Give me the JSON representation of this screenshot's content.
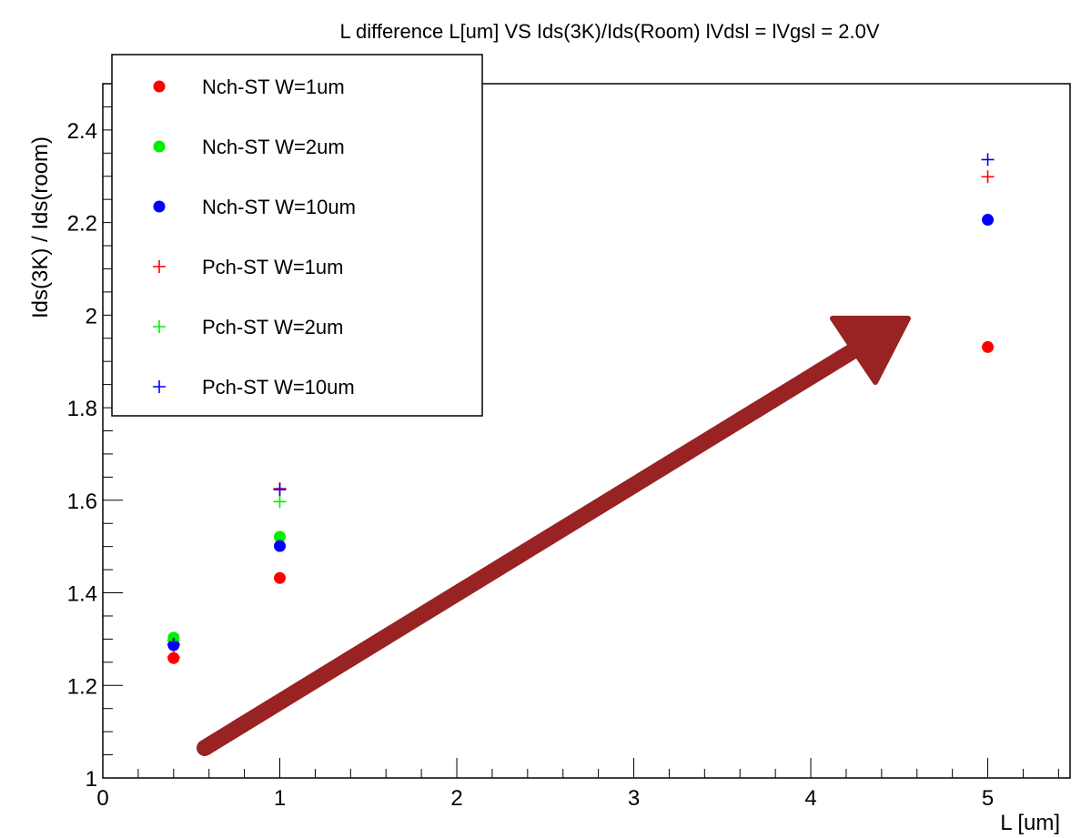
{
  "chart_data": {
    "type": "scatter",
    "title": "L difference   L[um] VS Ids(3K)/Ids(Room)  lVdsl = lVgsl = 2.0V",
    "x_label": "L [um]",
    "y_label": "Ids(3K) / Ids(room)",
    "x": [
      0.4,
      1,
      5
    ],
    "series": [
      {
        "name": "Nch-ST W=1um",
        "color": "#ff0000",
        "marker": "circle",
        "values": [
          1.259,
          1.432,
          1.931
        ]
      },
      {
        "name": "Nch-ST W=2um",
        "color": "#00ee00",
        "marker": "circle",
        "values": [
          1.303,
          1.521,
          null
        ]
      },
      {
        "name": "Nch-ST W=10um",
        "color": "#0000ff",
        "marker": "circle",
        "values": [
          1.287,
          1.501,
          2.206
        ]
      },
      {
        "name": "Pch-ST W=1um",
        "color": "#ff0000",
        "marker": "plus",
        "values": [
          1.261,
          1.625,
          2.299
        ]
      },
      {
        "name": "Pch-ST W=2um",
        "color": "#00ee00",
        "marker": "plus",
        "values": [
          1.297,
          1.597,
          null
        ]
      },
      {
        "name": "Pch-ST W=10um",
        "color": "#0000ff",
        "marker": "plus",
        "values": [
          1.289,
          1.623,
          2.336
        ]
      }
    ],
    "xlim": [
      0,
      5.465
    ],
    "ylim": [
      1,
      2.5
    ],
    "xticks": [
      0,
      1,
      2,
      3,
      4,
      5
    ],
    "yticks": [
      1,
      1.2,
      1.4,
      1.6,
      1.8,
      2,
      2.2,
      2.4
    ]
  }
}
